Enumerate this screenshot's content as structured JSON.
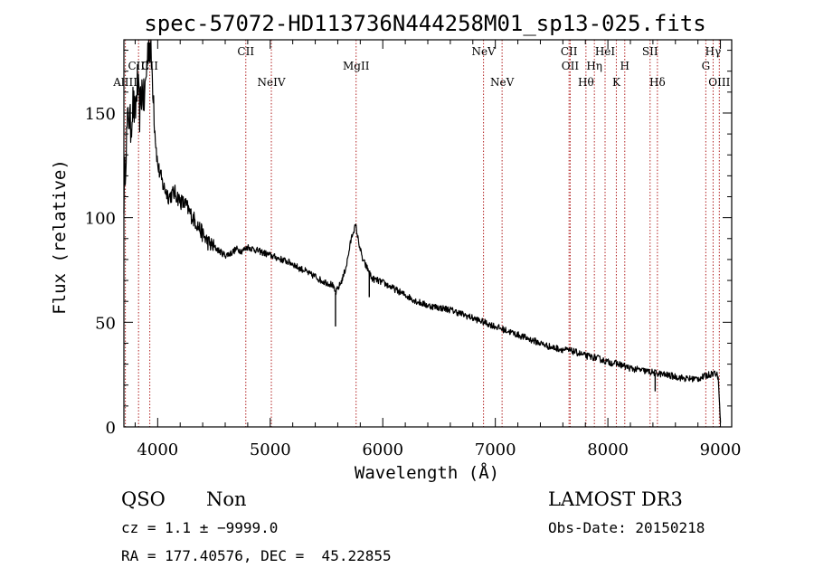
{
  "chart_data": {
    "type": "line",
    "title": "spec-57072-HD113736N444258M01_sp13-025.fits",
    "xlabel": "Wavelength (Å)",
    "ylabel": "Flux (relative)",
    "xlim": [
      3700,
      9100
    ],
    "ylim": [
      0,
      185
    ],
    "xticks": [
      4000,
      5000,
      6000,
      7000,
      8000,
      9000
    ],
    "yticks": [
      0,
      50,
      100,
      150
    ],
    "series": [
      {
        "name": "spectrum",
        "x": [
          3700,
          3720,
          3740,
          3760,
          3780,
          3800,
          3820,
          3840,
          3860,
          3880,
          3900,
          3920,
          3940,
          3960,
          3980,
          4000,
          4050,
          4100,
          4150,
          4200,
          4250,
          4300,
          4350,
          4400,
          4450,
          4500,
          4550,
          4600,
          4650,
          4700,
          4750,
          4800,
          4850,
          4900,
          4950,
          5000,
          5050,
          5100,
          5150,
          5200,
          5250,
          5300,
          5350,
          5400,
          5450,
          5500,
          5550,
          5580,
          5600,
          5620,
          5650,
          5680,
          5700,
          5720,
          5740,
          5760,
          5780,
          5800,
          5820,
          5850,
          5880,
          5900,
          5950,
          6000,
          6100,
          6200,
          6300,
          6400,
          6500,
          6600,
          6700,
          6800,
          6900,
          7000,
          7100,
          7200,
          7300,
          7400,
          7500,
          7600,
          7700,
          7800,
          7900,
          8000,
          8100,
          8200,
          8300,
          8400,
          8500,
          8600,
          8700,
          8800,
          8850,
          8900,
          8950,
          8980,
          9000
        ],
        "y": [
          110,
          135,
          150,
          143,
          155,
          148,
          165,
          150,
          162,
          155,
          170,
          185,
          178,
          162,
          138,
          125,
          115,
          110,
          112,
          108,
          106,
          101,
          97,
          92,
          88,
          86,
          84,
          82,
          83,
          85,
          84,
          86,
          85,
          84,
          83,
          82,
          81,
          80,
          79,
          78,
          76,
          75,
          73,
          72,
          70,
          69,
          68,
          64,
          66,
          68,
          72,
          78,
          84,
          90,
          94,
          96,
          90,
          85,
          80,
          77,
          74,
          71,
          70,
          69,
          66,
          63,
          60,
          58,
          57,
          56,
          54,
          52,
          50,
          48,
          46,
          44,
          42,
          40,
          38,
          37,
          36,
          34,
          33,
          31,
          30,
          28,
          27,
          26,
          25,
          24,
          23,
          23,
          24,
          25,
          26,
          24,
          2
        ]
      }
    ],
    "spike_marks": [
      {
        "x": 5580,
        "y": 48
      },
      {
        "x": 5880,
        "y": 62
      },
      {
        "x": 8420,
        "y": 17
      }
    ],
    "line_marks": [
      {
        "id": "al",
        "label": "AlIII",
        "x": 3713,
        "row": 3
      },
      {
        "id": "c3",
        "label": "CIII",
        "x": 3830,
        "row": 2
      },
      {
        "id": "c4",
        "label": "CII",
        "x": 3930,
        "row": 2
      },
      {
        "id": "c2",
        "label": "CII",
        "x": 4783,
        "row": 1
      },
      {
        "id": "ne4",
        "label": "NeIV",
        "x": 5010,
        "row": 3
      },
      {
        "id": "mg2",
        "label": "MgII",
        "x": 5763,
        "row": 2
      },
      {
        "id": "ne5a",
        "label": "NeV",
        "x": 6895,
        "row": 1
      },
      {
        "id": "ne5b",
        "label": "NeV",
        "x": 7060,
        "row": 3
      },
      {
        "id": "c2b",
        "label": "CII",
        "x": 7655,
        "row": 1
      },
      {
        "id": "o2",
        "label": "OII",
        "x": 7665,
        "row": 2
      },
      {
        "id": "hth",
        "label": "Hθ",
        "x": 7805,
        "row": 3
      },
      {
        "id": "het",
        "label": "Hη",
        "x": 7880,
        "row": 2
      },
      {
        "id": "he1",
        "label": "HeI",
        "x": 7975,
        "row": 1
      },
      {
        "id": "kk",
        "label": "K",
        "x": 8075,
        "row": 3
      },
      {
        "id": "hh",
        "label": "H",
        "x": 8150,
        "row": 2
      },
      {
        "id": "s2",
        "label": "SII",
        "x": 8375,
        "row": 1
      },
      {
        "id": "hd",
        "label": "Hδ",
        "x": 8440,
        "row": 3
      },
      {
        "id": "gg",
        "label": "G",
        "x": 8870,
        "row": 2
      },
      {
        "id": "hg",
        "label": "Hγ",
        "x": 8935,
        "row": 1
      },
      {
        "id": "o3",
        "label": "OIII",
        "x": 8990,
        "row": 3
      }
    ]
  },
  "info": {
    "class": "QSO",
    "subclass": "Non",
    "survey": "LAMOST DR3",
    "cz": "cz = 1.1 ± −9999.0",
    "obs_date": "Obs-Date: 20150218",
    "radec": "RA = 177.40576, DEC =  45.22855"
  },
  "colors": {
    "spectrum": "#000000",
    "marker": "#b22222",
    "axes": "#000000"
  }
}
